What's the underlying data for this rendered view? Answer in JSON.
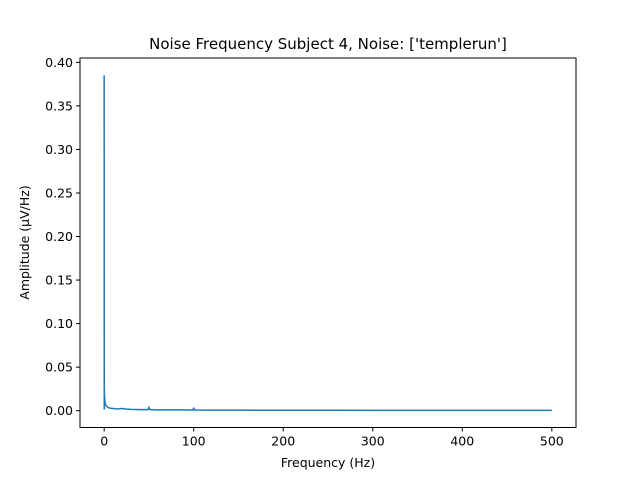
{
  "chart_data": {
    "type": "line",
    "title": "Noise Frequency Subject 4, Noise: ['templerun']",
    "xlabel": "Frequency (Hz)",
    "ylabel": "Amplitude (μV/Hz)",
    "xlim": [
      -27,
      527
    ],
    "ylim": [
      -0.0193,
      0.405
    ],
    "x_ticks": [
      0,
      100,
      200,
      300,
      400,
      500
    ],
    "x_tick_labels": [
      "0",
      "100",
      "200",
      "300",
      "400",
      "500"
    ],
    "y_ticks": [
      0.0,
      0.05,
      0.1,
      0.15,
      0.2,
      0.25,
      0.3,
      0.35,
      0.4
    ],
    "y_tick_labels": [
      "0.00",
      "0.05",
      "0.10",
      "0.15",
      "0.20",
      "0.25",
      "0.30",
      "0.35",
      "0.40"
    ],
    "grid": false,
    "series": [
      {
        "color": "#1f77b4",
        "x": [
          0,
          0.1,
          0.2,
          0.3,
          0.5,
          0.8,
          1,
          1.5,
          2,
          3,
          4,
          5,
          6,
          8,
          10,
          12,
          15,
          20,
          25,
          30,
          40,
          49,
          50,
          51,
          60,
          80,
          99,
          100,
          101,
          120,
          150,
          200,
          250,
          300,
          350,
          400,
          450,
          500
        ],
        "y": [
          0.385,
          0.002,
          0.028,
          0.012,
          0.018,
          0.01,
          0.009,
          0.007,
          0.006,
          0.005,
          0.004,
          0.0035,
          0.003,
          0.0028,
          0.0025,
          0.0022,
          0.002,
          0.0025,
          0.0018,
          0.0015,
          0.0012,
          0.0012,
          0.004,
          0.0012,
          0.001,
          0.0009,
          0.0008,
          0.003,
          0.0008,
          0.0007,
          0.0006,
          0.0005,
          0.0005,
          0.0004,
          0.0004,
          0.0004,
          0.0003,
          0.0003
        ]
      }
    ]
  }
}
